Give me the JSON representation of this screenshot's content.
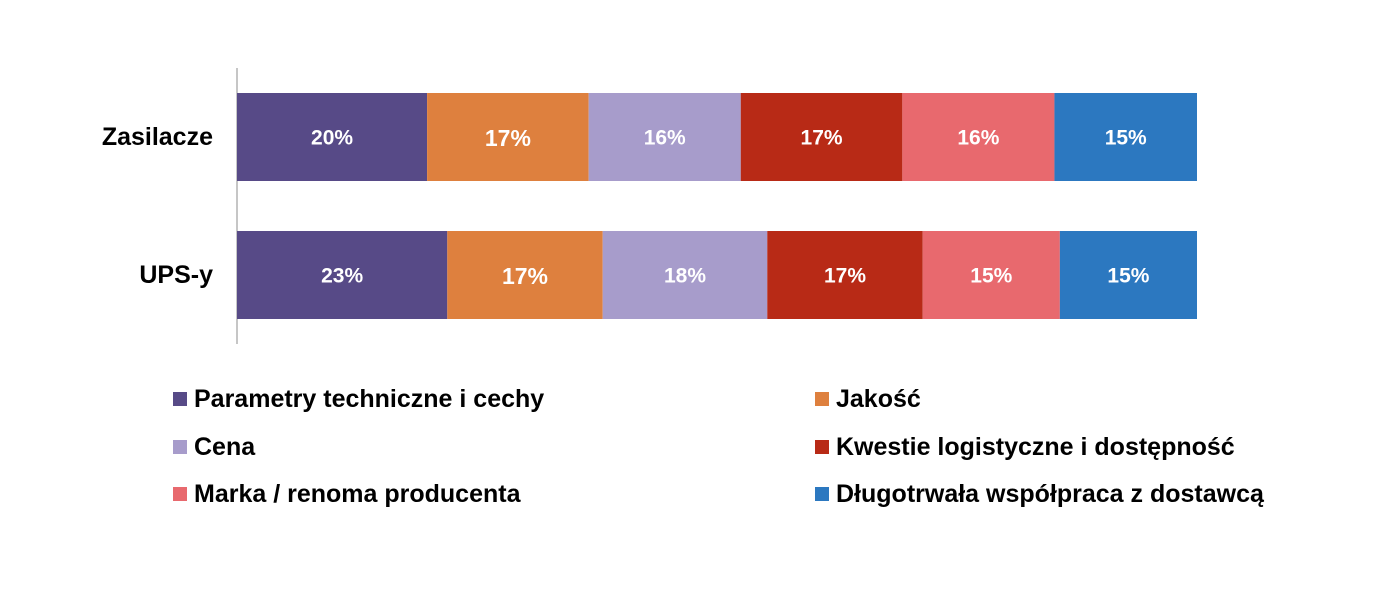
{
  "chart_data": {
    "type": "bar",
    "orientation": "horizontal",
    "stacked": "percent",
    "title": "",
    "xlabel": "",
    "ylabel": "",
    "categories": [
      "Zasilacze",
      "UPS-y"
    ],
    "series": [
      {
        "name": "Parametry techniczne i cechy",
        "color": "#574A87",
        "values": [
          20,
          23
        ],
        "labels": [
          "20%",
          "23%"
        ]
      },
      {
        "name": "Jakość",
        "color": "#DE803E",
        "values": [
          17,
          17
        ],
        "labels": [
          "17%",
          "17%"
        ]
      },
      {
        "name": "Cena",
        "color": "#A79CCB",
        "values": [
          16,
          18
        ],
        "labels": [
          "16%",
          "18%"
        ]
      },
      {
        "name": "Kwestie logistyczne i dostępność",
        "color": "#B82A16",
        "values": [
          17,
          17
        ],
        "labels": [
          "17%",
          "17%"
        ]
      },
      {
        "name": "Marka / renoma producenta",
        "color": "#E8696E",
        "values": [
          16,
          15
        ],
        "labels": [
          "16%",
          "15%"
        ]
      },
      {
        "name": "Długotrwała współpraca z dostawcą",
        "color": "#2C78C0",
        "values": [
          15,
          15
        ],
        "labels": [
          "15%",
          "15%"
        ]
      }
    ],
    "legend_position": "bottom",
    "grid": false
  }
}
